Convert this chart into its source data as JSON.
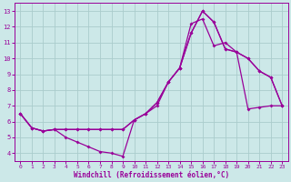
{
  "xlabel": "Windchill (Refroidissement éolien,°C)",
  "background_color": "#cce8e8",
  "grid_color": "#aacccc",
  "line_color": "#990099",
  "xlim": [
    -0.5,
    23.5
  ],
  "ylim": [
    3.5,
    13.5
  ],
  "yticks": [
    4,
    5,
    6,
    7,
    8,
    9,
    10,
    11,
    12,
    13
  ],
  "xticks": [
    0,
    1,
    2,
    3,
    4,
    5,
    6,
    7,
    8,
    9,
    10,
    11,
    12,
    13,
    14,
    15,
    16,
    17,
    18,
    19,
    20,
    21,
    22,
    23
  ],
  "curve1_x": [
    0,
    1,
    2,
    3,
    4,
    5,
    6,
    7,
    8,
    9,
    10,
    11,
    12,
    13,
    14,
    15,
    16,
    17,
    18,
    19,
    20,
    21,
    22,
    23
  ],
  "curve1_y": [
    6.5,
    5.6,
    5.4,
    5.5,
    5.5,
    5.5,
    5.5,
    5.5,
    5.5,
    5.5,
    6.1,
    6.5,
    7.2,
    8.5,
    9.4,
    11.6,
    13.0,
    12.3,
    10.6,
    10.4,
    6.8,
    6.9,
    7.0,
    7.0
  ],
  "curve2_x": [
    0,
    1,
    2,
    3,
    4,
    5,
    6,
    7,
    8,
    9,
    10,
    11,
    12,
    13,
    14,
    15,
    16,
    17,
    18,
    19,
    20,
    21,
    22,
    23
  ],
  "curve2_y": [
    6.5,
    5.6,
    5.4,
    5.5,
    5.5,
    5.5,
    5.5,
    5.5,
    5.5,
    5.5,
    6.1,
    6.5,
    7.2,
    8.5,
    9.4,
    12.2,
    12.5,
    10.8,
    11.0,
    10.4,
    10.0,
    9.2,
    8.8,
    7.0
  ],
  "curve3_x": [
    0,
    1,
    2,
    3,
    4,
    5,
    6,
    7,
    8,
    9,
    10,
    11,
    12,
    13,
    14,
    15,
    16,
    17,
    18,
    19,
    20,
    21,
    22,
    23
  ],
  "curve3_y": [
    6.5,
    5.6,
    5.4,
    5.5,
    5.0,
    4.7,
    4.4,
    4.1,
    4.0,
    3.8,
    6.1,
    6.5,
    7.0,
    8.5,
    9.4,
    11.6,
    13.0,
    12.3,
    10.6,
    10.4,
    10.0,
    9.2,
    8.8,
    7.0
  ]
}
